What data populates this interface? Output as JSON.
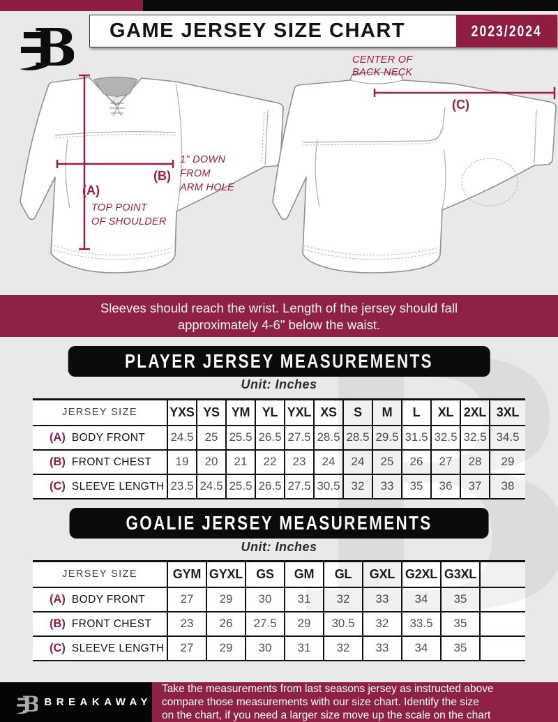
{
  "colors": {
    "maroon": "#8E1D40",
    "notice_maroon": "#8E2144",
    "accent_crimson": "#A01C3F",
    "page_background": "#e9e9e9",
    "banner_black": "#0b0b0b"
  },
  "header": {
    "title": "GAME JERSEY SIZE CHART",
    "season": "2023/2024",
    "logo": "breakaway-b-logo"
  },
  "diagram": {
    "front": {
      "a_label": "(A)",
      "a_caption_line1": "TOP POINT",
      "a_caption_line2": "OF SHOULDER",
      "b_label": "(B)",
      "b_caption_line1": "1\" DOWN",
      "b_caption_line2": "FROM",
      "b_caption_line3": "ARM HOLE"
    },
    "back": {
      "c_label": "(C)",
      "caption_line1": "CENTER OF",
      "caption_line2": "BACK NECK"
    }
  },
  "notice": {
    "line1": "Sleeves should reach the wrist. Length of the jersey should fall",
    "line2": "approximately 4-6\" below the waist."
  },
  "player_section": {
    "title": "PLAYER JERSEY MEASUREMENTS",
    "unit": "Unit: Inches"
  },
  "goalie_section": {
    "title": "GOALIE JERSEY MEASUREMENTS",
    "unit": "Unit: Inches"
  },
  "player_table": {
    "corner": "JERSEY SIZE",
    "sizes": [
      "YXS",
      "YS",
      "YM",
      "YL",
      "YXL",
      "XS",
      "S",
      "M",
      "L",
      "XL",
      "2XL",
      "3XL"
    ],
    "rows": [
      {
        "key": "(A)",
        "label": "BODY FRONT",
        "values": [
          "24.5",
          "25",
          "25.5",
          "26.5",
          "27.5",
          "28.5",
          "28.5",
          "29.5",
          "31.5",
          "32.5",
          "32.5",
          "34.5"
        ]
      },
      {
        "key": "(B)",
        "label": "FRONT CHEST",
        "values": [
          "19",
          "20",
          "21",
          "22",
          "23",
          "24",
          "24",
          "25",
          "26",
          "27",
          "28",
          "29"
        ]
      },
      {
        "key": "(C)",
        "label": "SLEEVE LENGTH",
        "values": [
          "23.5",
          "24.5",
          "25.5",
          "26.5",
          "27.5",
          "30.5",
          "32",
          "33",
          "35",
          "36",
          "37",
          "38"
        ]
      }
    ]
  },
  "goalie_table": {
    "corner": "JERSEY SIZE",
    "sizes": [
      "GYM",
      "GYXL",
      "GS",
      "GM",
      "GL",
      "GXL",
      "G2XL",
      "G3XL",
      ""
    ],
    "rows": [
      {
        "key": "(A)",
        "label": "BODY FRONT",
        "values": [
          "27",
          "29",
          "30",
          "31",
          "32",
          "33",
          "34",
          "35",
          ""
        ]
      },
      {
        "key": "(B)",
        "label": "FRONT CHEST",
        "values": [
          "23",
          "26",
          "27.5",
          "29",
          "30.5",
          "32",
          "33.5",
          "35",
          ""
        ]
      },
      {
        "key": "(C)",
        "label": "SLEEVE LENGTH",
        "values": [
          "27",
          "29",
          "30",
          "31",
          "32",
          "33",
          "34",
          "35",
          ""
        ]
      }
    ]
  },
  "watermark": "B",
  "footer": {
    "brand": "BREAKAWAY",
    "lines": [
      "Take the measurements from last seasons jersey as instructed above",
      "compare those measurements  with our size chart. Identify the size",
      "on the chart, if you need a larger size move up the scale on the chart"
    ]
  }
}
